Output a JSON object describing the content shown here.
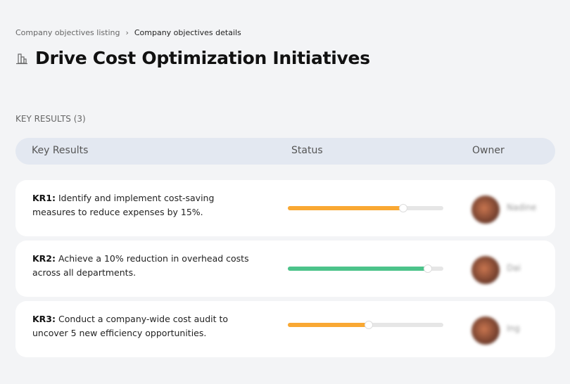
{
  "breadcrumb": {
    "items": [
      "Company objectives listing",
      "Company objectives details"
    ],
    "separator": "›"
  },
  "title": "Drive Cost Optimization Initiatives",
  "section_label": "KEY RESULTS (3)",
  "table": {
    "headers": [
      "Key Results",
      "Status",
      "Owner"
    ],
    "rows": [
      {
        "id": "KR1:",
        "text": "Identify and implement cost-saving measures to reduce expenses by 15%.",
        "progress": 74,
        "color": "#f9a833",
        "owner": "Nadine"
      },
      {
        "id": "KR2:",
        "text": "Achieve a 10% reduction in overhead costs across all departments.",
        "progress": 90,
        "color": "#4cc38a",
        "owner": "Dai"
      },
      {
        "id": "KR3:",
        "text": "Conduct a company-wide cost audit to uncover 5 new efficiency opportunities.",
        "progress": 52,
        "color": "#f9a833",
        "owner": "Ing"
      }
    ]
  }
}
